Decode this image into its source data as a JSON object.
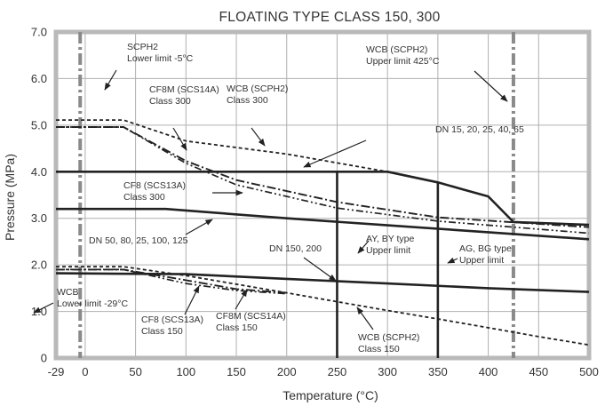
{
  "chart_data": {
    "type": "line",
    "title": "FLOATING TYPE CLASS 150, 300",
    "xlabel": "Temperature (°C)",
    "ylabel": "Pressure (MPa)",
    "xlim": [
      -29,
      500
    ],
    "ylim": [
      0,
      7
    ],
    "x_ticks": [
      -29,
      0,
      50,
      100,
      150,
      200,
      250,
      300,
      350,
      400,
      450,
      500
    ],
    "y_ticks": [
      "0",
      "1.0",
      "2.0",
      "3.0",
      "4.0",
      "5.0",
      "6.0",
      "7.0"
    ],
    "grid": true,
    "colors": {
      "lines": "#222222",
      "grid": "#b0b0b0",
      "frame": "#b9b9b9",
      "limit_lines": "#8a8a8a"
    },
    "series": [
      {
        "key": "wcb300",
        "style": "dashed",
        "x": [
          -29,
          38,
          100,
          200,
          300
        ],
        "y": [
          5.11,
          5.11,
          4.66,
          4.38,
          4.0
        ]
      },
      {
        "key": "cf8m300",
        "style": "dashdot",
        "x": [
          -29,
          38,
          100,
          150,
          250,
          350,
          500
        ],
        "y": [
          4.96,
          4.96,
          4.23,
          3.82,
          3.35,
          3.02,
          2.81
        ]
      },
      {
        "key": "cf8_300",
        "style": "dashdot2",
        "x": [
          -29,
          38,
          100,
          150,
          250,
          350,
          500
        ],
        "y": [
          4.96,
          4.96,
          4.18,
          3.72,
          3.22,
          2.94,
          2.68
        ]
      },
      {
        "key": "dn15",
        "style": "solid",
        "x": [
          -29,
          300,
          350,
          375,
          400,
          425,
          500
        ],
        "y": [
          4.0,
          4.0,
          3.77,
          3.62,
          3.47,
          2.92,
          2.86
        ]
      },
      {
        "key": "dn50",
        "style": "solid",
        "x": [
          -29,
          80,
          200,
          300,
          400,
          500
        ],
        "y": [
          3.2,
          3.2,
          3.0,
          2.85,
          2.7,
          2.55
        ]
      },
      {
        "key": "wcb150",
        "style": "dashed",
        "x": [
          -29,
          38,
          100,
          200,
          250,
          300,
          350,
          400,
          450,
          500
        ],
        "y": [
          1.96,
          1.96,
          1.77,
          1.4,
          1.21,
          1.02,
          0.84,
          0.65,
          0.46,
          0.28
        ]
      },
      {
        "key": "cf8m150",
        "style": "dashdot",
        "x": [
          -29,
          38,
          100,
          150,
          200
        ],
        "y": [
          1.9,
          1.9,
          1.67,
          1.48,
          1.4
        ]
      },
      {
        "key": "cf8_150",
        "style": "dashdot2",
        "x": [
          -29,
          38,
          100,
          150,
          200
        ],
        "y": [
          1.9,
          1.9,
          1.6,
          1.45,
          1.38
        ]
      },
      {
        "key": "dn150",
        "style": "solid",
        "x": [
          -29,
          100,
          200,
          300,
          400,
          500
        ],
        "y": [
          1.82,
          1.8,
          1.7,
          1.6,
          1.5,
          1.42
        ]
      }
    ],
    "vertical_lines": [
      {
        "key": "scph2_low",
        "style": "dashdot-grey",
        "x": -5
      },
      {
        "key": "wcb_upper",
        "style": "dashdot-grey",
        "x": 425
      },
      {
        "key": "ay_upper",
        "style": "solid",
        "x": 250,
        "y_top": 4.0
      },
      {
        "key": "ag_upper",
        "style": "solid",
        "x": 350,
        "y_top": 3.77
      }
    ],
    "annotations": [
      {
        "lines": [
          "SCPH2",
          "Lower limit -5°C"
        ]
      },
      {
        "lines": [
          "WCB (SCPH2)",
          "Upper limit 425°C"
        ]
      },
      {
        "lines": [
          "CF8M (SCS14A)",
          "Class 300"
        ]
      },
      {
        "lines": [
          "WCB (SCPH2)",
          "Class 300"
        ]
      },
      {
        "lines": [
          "DN 15, 20, 25, 40, 65"
        ]
      },
      {
        "lines": [
          "CF8 (SCS13A)",
          "Class 300"
        ]
      },
      {
        "lines": [
          "DN 50, 80, 25, 100, 125"
        ]
      },
      {
        "lines": [
          "DN 150, 200"
        ]
      },
      {
        "lines": [
          "AY, BY type",
          "Upper limit"
        ]
      },
      {
        "lines": [
          "AG, BG type",
          "Upper limit"
        ]
      },
      {
        "lines": [
          "WCB",
          "Lower limit -29°C"
        ]
      },
      {
        "lines": [
          "CF8 (SCS13A)",
          "Class 150"
        ]
      },
      {
        "lines": [
          "CF8M (SCS14A)",
          "Class 150"
        ]
      },
      {
        "lines": [
          "WCB (SCPH2)",
          "Class 150"
        ]
      }
    ]
  }
}
